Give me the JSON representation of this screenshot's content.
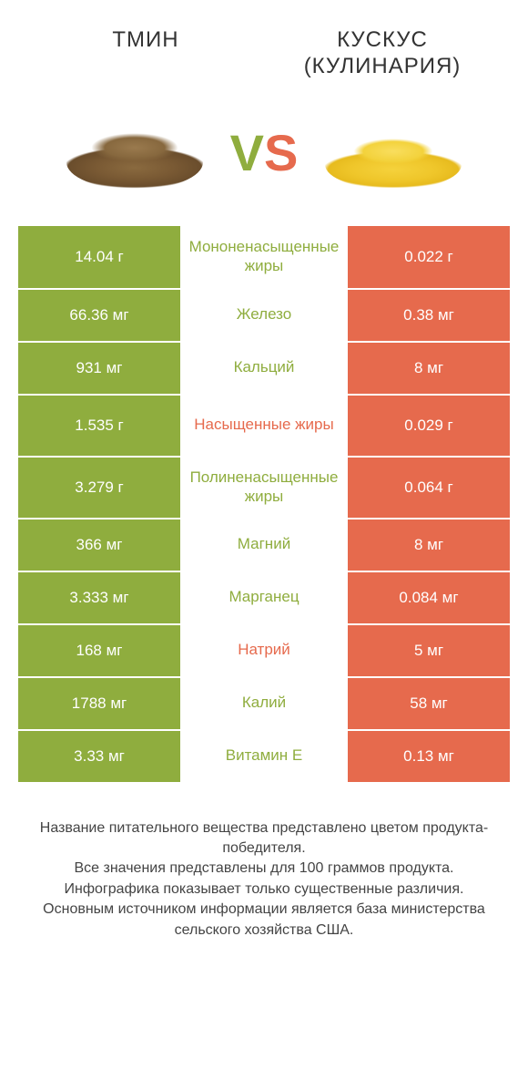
{
  "colors": {
    "green": "#8fad3e",
    "orange": "#e66a4d",
    "background": "#ffffff",
    "text": "#333333",
    "footer_text": "#444444"
  },
  "typography": {
    "title_fontsize": 24,
    "vs_fontsize": 56,
    "cell_fontsize": 17,
    "footer_fontsize": 16
  },
  "header": {
    "left_title": "ТМИН",
    "right_title_line1": "КУСКУС",
    "right_title_line2": "(КУЛИНАРИЯ)"
  },
  "vs": {
    "v": "V",
    "s": "S"
  },
  "rows": [
    {
      "left": "14.04 г",
      "mid": "Мононенасыщенные жиры",
      "right": "0.022 г",
      "winner": "left",
      "tall": true
    },
    {
      "left": "66.36 мг",
      "mid": "Железо",
      "right": "0.38 мг",
      "winner": "left",
      "tall": false
    },
    {
      "left": "931 мг",
      "mid": "Кальций",
      "right": "8 мг",
      "winner": "left",
      "tall": false
    },
    {
      "left": "1.535 г",
      "mid": "Насыщенные жиры",
      "right": "0.029 г",
      "winner": "right",
      "tall": true
    },
    {
      "left": "3.279 г",
      "mid": "Полиненасыщенные жиры",
      "right": "0.064 г",
      "winner": "left",
      "tall": true
    },
    {
      "left": "366 мг",
      "mid": "Магний",
      "right": "8 мг",
      "winner": "left",
      "tall": false
    },
    {
      "left": "3.333 мг",
      "mid": "Марганец",
      "right": "0.084 мг",
      "winner": "left",
      "tall": false
    },
    {
      "left": "168 мг",
      "mid": "Натрий",
      "right": "5 мг",
      "winner": "right",
      "tall": false
    },
    {
      "left": "1788 мг",
      "mid": "Калий",
      "right": "58 мг",
      "winner": "left",
      "tall": false
    },
    {
      "left": "3.33 мг",
      "mid": "Витамин E",
      "right": "0.13 мг",
      "winner": "left",
      "tall": false
    }
  ],
  "footer": {
    "line1": "Название питательного вещества представлено цветом продукта-победителя.",
    "line2": "Все значения представлены для 100 граммов продукта.",
    "line3": "Инфографика показывает только существенные различия.",
    "line4": "Основным источником информации является база министерства сельского хозяйства США."
  }
}
